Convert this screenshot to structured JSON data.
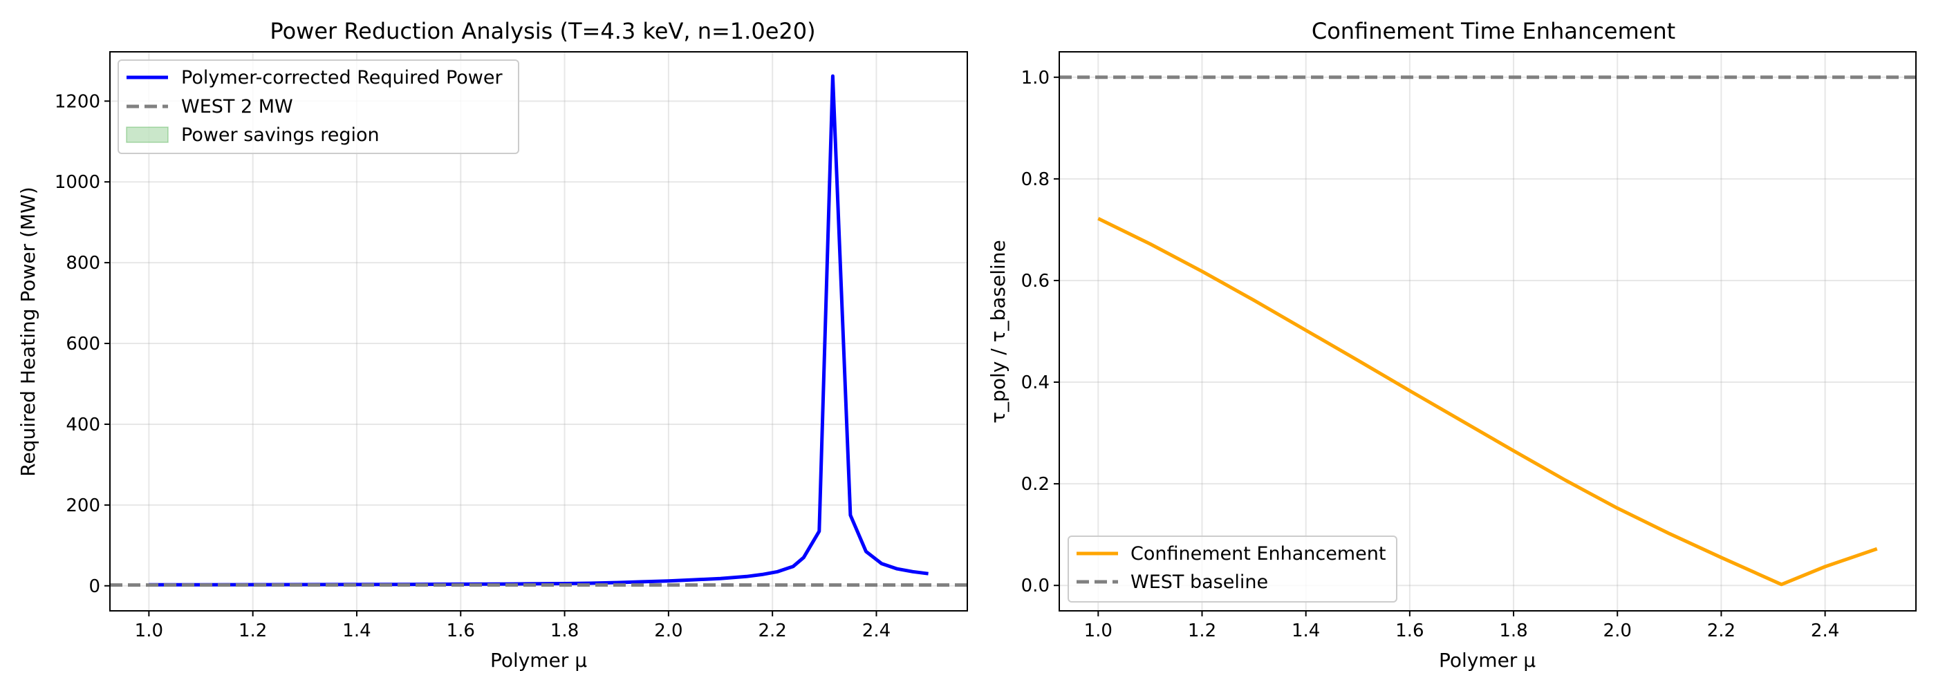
{
  "chart_data": [
    {
      "type": "line",
      "title": "Power Reduction Analysis (T=4.3 keV, n=1.0e20)",
      "xlabel": "Polymer μ",
      "ylabel": "Required Heating Power (MW)",
      "xlim": [
        0.925,
        2.575
      ],
      "ylim": [
        -62,
        1322
      ],
      "xticks": [
        1.0,
        1.2,
        1.4,
        1.6,
        1.8,
        2.0,
        2.2,
        2.4
      ],
      "yticks": [
        0,
        200,
        400,
        600,
        800,
        1000,
        1200
      ],
      "xtick_labels": [
        "1.0",
        "1.2",
        "1.4",
        "1.6",
        "1.8",
        "2.0",
        "2.2",
        "2.4"
      ],
      "ytick_labels": [
        "0",
        "200",
        "400",
        "600",
        "800",
        "1000",
        "1200"
      ],
      "grid": true,
      "legend_position": "upper-left",
      "series": [
        {
          "name": "Polymer-corrected Required Power",
          "color": "#0000ff",
          "style": "solid",
          "x": [
            1.0,
            1.1,
            1.2,
            1.3,
            1.4,
            1.5,
            1.6,
            1.7,
            1.8,
            1.85,
            1.9,
            1.95,
            2.0,
            2.05,
            2.1,
            2.15,
            2.18,
            2.21,
            2.24,
            2.26,
            2.29,
            2.316,
            2.35,
            2.38,
            2.41,
            2.44,
            2.47,
            2.5
          ],
          "y": [
            2.5,
            2.6,
            2.8,
            3.0,
            3.2,
            3.5,
            4.0,
            4.6,
            5.6,
            6.5,
            8,
            10,
            12,
            15,
            18,
            23,
            28,
            35,
            48,
            70,
            135,
            1262,
            175,
            85,
            55,
            42,
            35,
            30
          ]
        },
        {
          "name": "WEST 2 MW",
          "color": "#808080",
          "style": "dashed",
          "y_constant": 2
        }
      ],
      "fill_legend": {
        "name": "Power savings region",
        "color": "#2ca02c",
        "alpha": 0.25
      }
    },
    {
      "type": "line",
      "title": "Confinement Time Enhancement",
      "xlabel": "Polymer μ",
      "ylabel": "τ_poly / τ_baseline",
      "xlim": [
        0.925,
        2.575
      ],
      "ylim": [
        -0.05,
        1.05
      ],
      "xticks": [
        1.0,
        1.2,
        1.4,
        1.6,
        1.8,
        2.0,
        2.2,
        2.4
      ],
      "yticks": [
        0.0,
        0.2,
        0.4,
        0.6,
        0.8,
        1.0
      ],
      "xtick_labels": [
        "1.0",
        "1.2",
        "1.4",
        "1.6",
        "1.8",
        "2.0",
        "2.2",
        "2.4"
      ],
      "ytick_labels": [
        "0.0",
        "0.2",
        "0.4",
        "0.6",
        "0.8",
        "1.0"
      ],
      "grid": true,
      "legend_position": "lower-left",
      "series": [
        {
          "name": "Confinement Enhancement",
          "color": "#ffa500",
          "style": "solid",
          "x": [
            1.0,
            1.1,
            1.2,
            1.3,
            1.4,
            1.5,
            1.6,
            1.7,
            1.8,
            1.9,
            2.0,
            2.1,
            2.2,
            2.316,
            2.4,
            2.5
          ],
          "y": [
            0.722,
            0.672,
            0.618,
            0.561,
            0.502,
            0.443,
            0.383,
            0.324,
            0.265,
            0.207,
            0.152,
            0.102,
            0.055,
            0.002,
            0.037,
            0.072
          ]
        },
        {
          "name": "WEST baseline",
          "color": "#808080",
          "style": "dashed",
          "y_constant": 1.0
        }
      ]
    }
  ]
}
